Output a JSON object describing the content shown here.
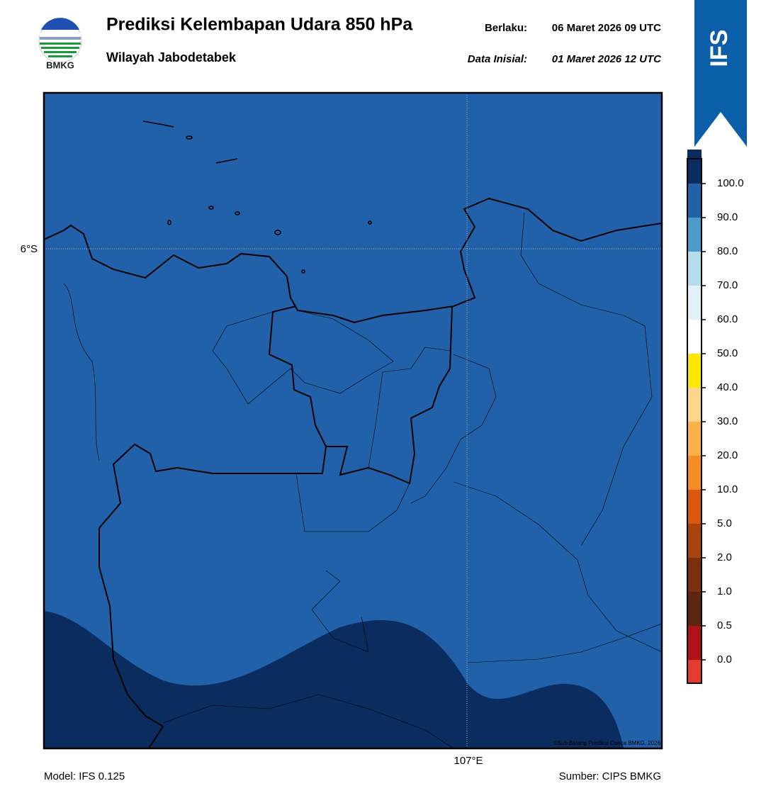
{
  "header": {
    "title": "Prediksi Kelembapan Udara 850 hPa",
    "subtitle": "Wilayah Jabodetabek",
    "valid_label": "Berlaku:",
    "valid_time": "06 Maret 2026 09 UTC",
    "init_label": "Data Inisial:",
    "init_time": "01 Maret 2026 12 UTC",
    "logo_text": "BMKG",
    "model_badge": "IFS"
  },
  "map": {
    "lat_label": "6°S",
    "lon_label": "107°E",
    "credit": "©Sub Bidang Prediksi Cuaca BMKG, 2026"
  },
  "colorbar": {
    "ticks": [
      {
        "value": 0,
        "label": "0.0"
      },
      {
        "value": 0.5,
        "label": "0.5"
      },
      {
        "value": 1,
        "label": "1.0"
      },
      {
        "value": 2,
        "label": "2.0"
      },
      {
        "value": 5,
        "label": "5.0"
      },
      {
        "value": 10,
        "label": "10.0"
      },
      {
        "value": 20,
        "label": "20.0"
      },
      {
        "value": 30,
        "label": "30.0"
      },
      {
        "value": 40,
        "label": "40.0"
      },
      {
        "value": 50,
        "label": "50.0"
      },
      {
        "value": 60,
        "label": "60.0"
      },
      {
        "value": 70,
        "label": "70.0"
      },
      {
        "value": 80,
        "label": "80.0"
      },
      {
        "value": 90,
        "label": "90.0"
      },
      {
        "value": 100,
        "label": "100.0"
      }
    ],
    "colors": [
      "#e53b2f",
      "#b0121a",
      "#5a2610",
      "#7a300c",
      "#a8430e",
      "#d9580c",
      "#f68d22",
      "#fbb048",
      "#fdd58a",
      "#ffe800",
      "#ffffff",
      "#e3f0f8",
      "#b4dcea",
      "#4a9bc8",
      "#2061aa",
      "#0b2c5e",
      "#2a0b4d"
    ]
  },
  "footer": {
    "model": "Model: IFS 0.125",
    "source": "Sumber: CIPS BMKG"
  }
}
